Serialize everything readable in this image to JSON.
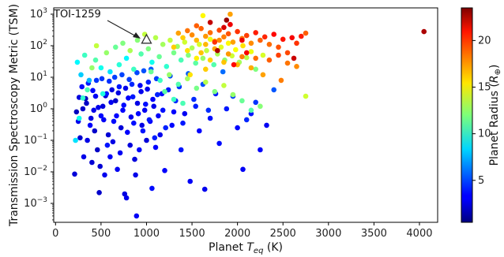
{
  "chart_data": {
    "type": "scatter",
    "xlabel_prefix": "Planet ",
    "xlabel_var": "T",
    "xlabel_sub": "eq",
    "xlabel_suffix": " (K)",
    "ylabel": "Transmission Spectroscopy Metric (TSM)",
    "xlim": [
      -20,
      4200
    ],
    "ylim_log10": [
      -3.6,
      3.2
    ],
    "y_scale": "log",
    "x_ticks": [
      0,
      500,
      1000,
      1500,
      2000,
      2500,
      3000,
      3500,
      4000
    ],
    "x_tick_labels": [
      "0",
      "500",
      "1000",
      "1500",
      "2000",
      "2500",
      "3000",
      "3500",
      "4000"
    ],
    "y_ticks_log10": [
      -3,
      -2,
      -1,
      0,
      1,
      2,
      3
    ],
    "y_tick_base": "10",
    "y_tick_exponents": [
      "−3",
      "−2",
      "−1",
      "0",
      "1",
      "2",
      "3"
    ],
    "colorbar": {
      "label_text": "Planet Radius (",
      "label_var": "R",
      "label_sub": "⊕",
      "label_close": ")",
      "vmin": 0.5,
      "vmax": 23.5,
      "ticks": [
        5,
        10,
        15,
        20
      ],
      "tick_labels": [
        "5",
        "10",
        "15",
        "20"
      ],
      "colormap": "jet"
    },
    "annotation": {
      "text": "TOI-1259",
      "x": 1000,
      "tsm": 160,
      "marker": "triangle-outline"
    },
    "points": [
      [
        210,
        0.0085,
        2.5
      ],
      [
        250,
        0.4,
        3
      ],
      [
        300,
        1.0,
        2.2
      ],
      [
        330,
        2.1,
        1.8
      ],
      [
        350,
        0.1,
        2.8
      ],
      [
        380,
        0.3,
        3.3
      ],
      [
        400,
        0.02,
        2.4
      ],
      [
        420,
        0.9,
        2.9
      ],
      [
        440,
        2.5,
        3.1
      ],
      [
        460,
        0.05,
        2.1
      ],
      [
        480,
        0.0022,
        2.2
      ],
      [
        500,
        0.6,
        3.5
      ],
      [
        520,
        1.2,
        2.6
      ],
      [
        540,
        0.008,
        3.0
      ],
      [
        560,
        3.0,
        3.8
      ],
      [
        580,
        0.15,
        2.4
      ],
      [
        600,
        0.03,
        3.2
      ],
      [
        620,
        4.0,
        2.7
      ],
      [
        640,
        0.4,
        3.6
      ],
      [
        660,
        1.8,
        2.2
      ],
      [
        680,
        0.012,
        3.1
      ],
      [
        700,
        5.0,
        3.9
      ],
      [
        720,
        0.25,
        2.5
      ],
      [
        740,
        0.9,
        3.4
      ],
      [
        760,
        0.002,
        2.7
      ],
      [
        780,
        0.0015,
        3.0
      ],
      [
        800,
        2.2,
        3.3
      ],
      [
        820,
        0.07,
        2.6
      ],
      [
        840,
        6.0,
        4.2
      ],
      [
        860,
        0.35,
        3.7
      ],
      [
        880,
        0.008,
        2.9
      ],
      [
        890,
        0.0004,
        3.2
      ],
      [
        900,
        1.5,
        2.8
      ],
      [
        920,
        0.05,
        3.5
      ],
      [
        940,
        3.5,
        3.0
      ],
      [
        960,
        0.2,
        3.8
      ],
      [
        980,
        0.9,
        3.1
      ],
      [
        1000,
        0.1,
        2.5
      ],
      [
        1020,
        7.0,
        4.0
      ],
      [
        1040,
        0.4,
        3.3
      ],
      [
        1060,
        0.003,
        3.6
      ],
      [
        1080,
        1.2,
        2.9
      ],
      [
        1100,
        0.06,
        3.4
      ],
      [
        1120,
        2.8,
        4.1
      ],
      [
        1150,
        0.15,
        3.0
      ],
      [
        1180,
        0.9,
        3.7
      ],
      [
        1200,
        0.011,
        3.3
      ],
      [
        1240,
        4.0,
        3.9
      ],
      [
        1280,
        0.3,
        3.5
      ],
      [
        1320,
        1.8,
        4.2
      ],
      [
        1380,
        0.05,
        3.8
      ],
      [
        1420,
        0.7,
        3.1
      ],
      [
        1480,
        0.005,
        3.2
      ],
      [
        1520,
        2.0,
        4.3
      ],
      [
        1580,
        0.2,
        3.4
      ],
      [
        1640,
        0.0028,
        3.0
      ],
      [
        1700,
        0.5,
        3.7
      ],
      [
        1800,
        0.08,
        3.6
      ],
      [
        1880,
        1.0,
        3.9
      ],
      [
        2000,
        0.25,
        3.5
      ],
      [
        2060,
        0.012,
        3.2
      ],
      [
        2150,
        0.7,
        3.8
      ],
      [
        2250,
        0.05,
        3.3
      ],
      [
        2320,
        0.3,
        3.1
      ],
      [
        230,
        0.8,
        1.9
      ],
      [
        260,
        2.3,
        2.6
      ],
      [
        270,
        0.12,
        2.3
      ],
      [
        290,
        5.0,
        3.6
      ],
      [
        310,
        0.03,
        2.9
      ],
      [
        340,
        1.5,
        2.1
      ],
      [
        360,
        6.5,
        3.9
      ],
      [
        390,
        0.5,
        2.7
      ],
      [
        410,
        3.8,
        3.4
      ],
      [
        430,
        0.2,
        2.2
      ],
      [
        450,
        8.0,
        4.5
      ],
      [
        470,
        1.1,
        2.9
      ],
      [
        490,
        0.015,
        2.4
      ],
      [
        510,
        9.0,
        4.6
      ],
      [
        530,
        0.45,
        3.2
      ],
      [
        550,
        2.6,
        2.5
      ],
      [
        570,
        0.07,
        3.8
      ],
      [
        590,
        7.5,
        4.4
      ],
      [
        610,
        1.6,
        3.1
      ],
      [
        630,
        0.09,
        2.8
      ],
      [
        650,
        10.0,
        4.8
      ],
      [
        670,
        0.6,
        3.4
      ],
      [
        690,
        3.2,
        2.7
      ],
      [
        710,
        0.04,
        3.1
      ],
      [
        730,
        12.0,
        4.9
      ],
      [
        750,
        1.3,
        3.6
      ],
      [
        770,
        4.5,
        2.9
      ],
      [
        790,
        0.18,
        3.3
      ],
      [
        810,
        8.5,
        4.7
      ],
      [
        830,
        0.55,
        3.0
      ],
      [
        850,
        2.4,
        3.9
      ],
      [
        870,
        0.025,
        2.6
      ],
      [
        895,
        14.0,
        5.0
      ],
      [
        910,
        0.7,
        3.5
      ],
      [
        930,
        5.5,
        3.2
      ],
      [
        950,
        0.3,
        2.8
      ],
      [
        970,
        16.0,
        5.2
      ],
      [
        990,
        1.4,
        3.7
      ],
      [
        1010,
        4.2,
        3.0
      ],
      [
        1030,
        0.45,
        3.9
      ],
      [
        1050,
        18.0,
        5.4
      ],
      [
        1070,
        2.0,
        3.3
      ],
      [
        1090,
        0.12,
        4.0
      ],
      [
        1110,
        9.0,
        4.8
      ],
      [
        1130,
        0.6,
        3.2
      ],
      [
        1170,
        3.0,
        3.6
      ],
      [
        1210,
        0.25,
        4.1
      ],
      [
        1260,
        11.0,
        5.0
      ],
      [
        1300,
        0.8,
        3.4
      ],
      [
        1360,
        5.0,
        4.6
      ],
      [
        1400,
        0.35,
        3.9
      ],
      [
        1460,
        13.0,
        5.5
      ],
      [
        1540,
        1.2,
        4.0
      ],
      [
        1620,
        6.0,
        5.1
      ],
      [
        1680,
        0.9,
        4.4
      ],
      [
        1760,
        3.0,
        3.9
      ],
      [
        1840,
        15.0,
        5.8
      ],
      [
        1950,
        2.5,
        4.7
      ],
      [
        2100,
        0.45,
        4.2
      ],
      [
        2200,
        1.6,
        4.5
      ],
      [
        2400,
        4.0,
        5.3
      ],
      [
        240,
        30.0,
        9.0
      ],
      [
        280,
        12.0,
        8.0
      ],
      [
        320,
        50.0,
        10.5
      ],
      [
        370,
        8.0,
        7.5
      ],
      [
        440,
        35.0,
        11.0
      ],
      [
        500,
        20.0,
        9.5
      ],
      [
        560,
        60.0,
        12.5
      ],
      [
        600,
        15.0,
        8.5
      ],
      [
        660,
        90.0,
        11.5
      ],
      [
        700,
        25.0,
        10.0
      ],
      [
        740,
        120.0,
        12.0
      ],
      [
        780,
        40.0,
        9.0
      ],
      [
        820,
        70.0,
        13.0
      ],
      [
        860,
        18.0,
        10.5
      ],
      [
        900,
        150.0,
        12.2
      ],
      [
        940,
        55.0,
        11.0
      ],
      [
        980,
        230.0,
        13.5
      ],
      [
        1020,
        80.0,
        12.0
      ],
      [
        1060,
        30.0,
        9.5
      ],
      [
        1100,
        180.0,
        13.2
      ],
      [
        1140,
        45.0,
        11.5
      ],
      [
        1180,
        110.0,
        12.8
      ],
      [
        1220,
        22.0,
        10.2
      ],
      [
        1260,
        150.0,
        13.5
      ],
      [
        1300,
        60.0,
        11.8
      ],
      [
        1340,
        95.0,
        12.5
      ],
      [
        1380,
        35.0,
        10.8
      ],
      [
        1420,
        130.0,
        13.8
      ],
      [
        1460,
        50.0,
        12.0
      ],
      [
        1500,
        85.0,
        13.0
      ],
      [
        1540,
        28.0,
        11.2
      ],
      [
        1580,
        110.0,
        14.0
      ],
      [
        1620,
        40.0,
        12.5
      ],
      [
        1660,
        70.0,
        13.5
      ],
      [
        1700,
        160.0,
        14.5
      ],
      [
        1740,
        25.0,
        11.0
      ],
      [
        1780,
        55.0,
        13.0
      ],
      [
        1820,
        90.0,
        14.2
      ],
      [
        1860,
        35.0,
        12.2
      ],
      [
        1900,
        120.0,
        15.0
      ],
      [
        1940,
        48.0,
        13.8
      ],
      [
        1980,
        75.0,
        14.8
      ],
      [
        2020,
        30.0,
        12.8
      ],
      [
        2060,
        100.0,
        15.5
      ],
      [
        2100,
        42.0,
        13.2
      ],
      [
        2150,
        65.0,
        14.5
      ],
      [
        2200,
        18.0,
        12.0
      ],
      [
        2280,
        50.0,
        14.0
      ],
      [
        1050,
        15.0,
        11.5
      ],
      [
        1150,
        8.0,
        10.5
      ],
      [
        1250,
        12.0,
        12.5
      ],
      [
        1350,
        6.0,
        11.0
      ],
      [
        1450,
        9.0,
        12.8
      ],
      [
        1550,
        4.5,
        11.8
      ],
      [
        1650,
        7.0,
        13.2
      ],
      [
        1750,
        3.5,
        12.0
      ],
      [
        1850,
        5.5,
        13.5
      ],
      [
        1950,
        2.8,
        12.5
      ],
      [
        2050,
        1.8,
        11.5
      ],
      [
        2150,
        0.9,
        11.0
      ],
      [
        2250,
        1.2,
        12.2
      ],
      [
        1300,
        2.0,
        10.5
      ],
      [
        1200,
        3.5,
        11.2
      ],
      [
        1400,
        1.5,
        10.8
      ],
      [
        220,
        0.1,
        8.5
      ],
      [
        260,
        0.5,
        9.5
      ],
      [
        300,
        2.2,
        10.2
      ],
      [
        350,
        4.0,
        10.8
      ],
      [
        400,
        20.0,
        12.5
      ],
      [
        450,
        100.0,
        13.5
      ],
      [
        520,
        3.0,
        9.8
      ],
      [
        2750,
        2.5,
        13.8
      ],
      [
        1350,
        250.0,
        17.0
      ],
      [
        1400,
        180.0,
        16.0
      ],
      [
        1450,
        300.0,
        18.0
      ],
      [
        1500,
        220.0,
        17.5
      ],
      [
        1550,
        150.0,
        16.5
      ],
      [
        1600,
        350.0,
        18.5
      ],
      [
        1650,
        200.0,
        17.2
      ],
      [
        1700,
        260.0,
        18.2
      ],
      [
        1750,
        140.0,
        16.8
      ],
      [
        1800,
        310.0,
        19.0
      ],
      [
        1850,
        190.0,
        17.8
      ],
      [
        1900,
        240.0,
        18.8
      ],
      [
        1950,
        130.0,
        17.0
      ],
      [
        2000,
        280.0,
        19.5
      ],
      [
        2050,
        170.0,
        18.0
      ],
      [
        2100,
        210.0,
        19.2
      ],
      [
        2150,
        120.0,
        17.5
      ],
      [
        2200,
        260.0,
        20.0
      ],
      [
        2250,
        150.0,
        18.5
      ],
      [
        2300,
        190.0,
        19.8
      ],
      [
        2350,
        110.0,
        18.2
      ],
      [
        2400,
        230.0,
        20.5
      ],
      [
        2450,
        90.0,
        18.8
      ],
      [
        2500,
        160.0,
        20.2
      ],
      [
        2550,
        60.0,
        19.0
      ],
      [
        2600,
        180.0,
        20.8
      ],
      [
        2650,
        120.0,
        19.5
      ],
      [
        2700,
        200.0,
        20.0
      ],
      [
        2750,
        250.0,
        18.5
      ],
      [
        1300,
        90.0,
        16.0
      ],
      [
        1450,
        70.0,
        15.5
      ],
      [
        1600,
        60.0,
        16.2
      ],
      [
        1750,
        80.0,
        16.8
      ],
      [
        1900,
        55.0,
        17.2
      ],
      [
        2050,
        45.0,
        17.8
      ],
      [
        2200,
        40.0,
        18.2
      ],
      [
        2350,
        35.0,
        18.5
      ],
      [
        2450,
        50.0,
        19.2
      ],
      [
        2550,
        28.0,
        18.0
      ],
      [
        2650,
        22.0,
        17.5
      ],
      [
        1550,
        40.0,
        15.2
      ],
      [
        1700,
        35.0,
        15.8
      ],
      [
        1850,
        30.0,
        16.2
      ],
      [
        2000,
        25.0,
        16.5
      ],
      [
        2150,
        20.0,
        16.8
      ],
      [
        1650,
        110.0,
        16.5
      ],
      [
        1800,
        150.0,
        17.5
      ],
      [
        1700,
        550.0,
        22.0
      ],
      [
        1850,
        380.0,
        21.5
      ],
      [
        1920,
        470.0,
        21.0
      ],
      [
        2050,
        150.0,
        21.0
      ],
      [
        1780,
        70.0,
        22.5
      ],
      [
        1880,
        650.0,
        23.0
      ],
      [
        2620,
        40.0,
        21.8
      ],
      [
        1550,
        430.0,
        18.5
      ],
      [
        1750,
        130.0,
        19.5
      ],
      [
        2100,
        60.0,
        20.8
      ],
      [
        4050,
        280.0,
        22.5
      ],
      [
        2280,
        12.0,
        17.0
      ],
      [
        2480,
        8.0,
        17.8
      ],
      [
        1650,
        18.0,
        16.0
      ],
      [
        1480,
        12.0,
        15.5
      ],
      [
        1620,
        900.0,
        15.0
      ],
      [
        1920,
        1000.0,
        17.0
      ],
      [
        1960,
        25.0,
        20.5
      ]
    ]
  }
}
